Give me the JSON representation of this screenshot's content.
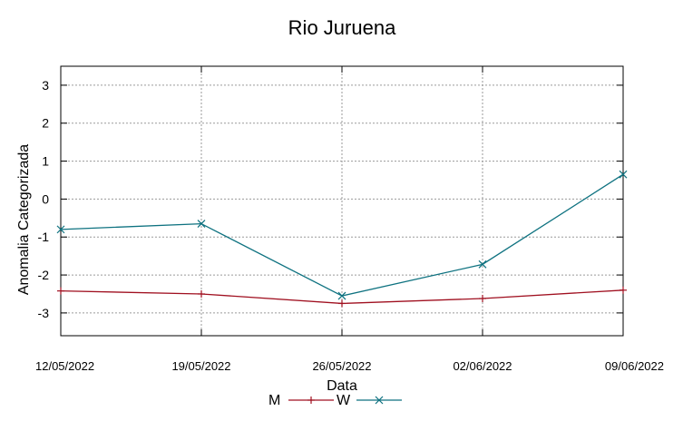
{
  "chart_data": {
    "type": "line",
    "title": "Rio Juruena",
    "xlabel": "Data",
    "ylabel": "Anomalia Categorizada",
    "categories": [
      "12/05/2022",
      "19/05/2022",
      "26/05/2022",
      "02/06/2022",
      "09/06/2022"
    ],
    "yticks": [
      "3",
      "2",
      "1",
      "0",
      "-1",
      "-2",
      "-3"
    ],
    "ylim": [
      -3.6,
      3.5
    ],
    "grid": true,
    "legend_position": "bottom-center",
    "series": [
      {
        "name": "M",
        "color": "#a01020",
        "marker": "plus",
        "values": [
          -2.42,
          -2.5,
          -2.75,
          -2.62,
          -2.4
        ]
      },
      {
        "name": "W",
        "color": "#0e7280",
        "marker": "x",
        "values": [
          -0.8,
          -0.65,
          -2.55,
          -1.72,
          0.65
        ]
      }
    ]
  }
}
